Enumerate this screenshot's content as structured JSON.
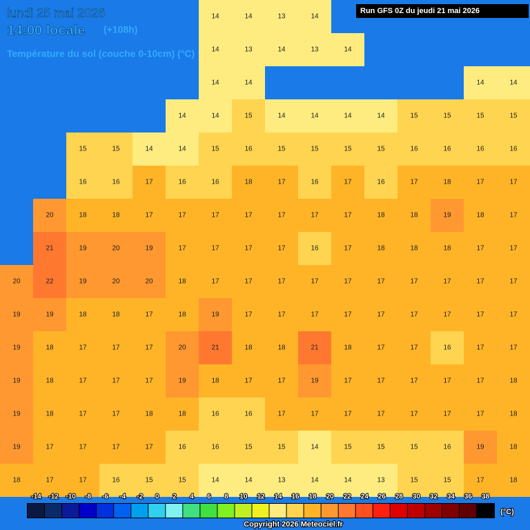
{
  "header": {
    "date": "lundi 25 mai 2026",
    "time": "14:00 locale",
    "lead": "(+108h)",
    "variable": "Température du sol (couche 0-10cm) (°C)",
    "run": "Run GFS 0Z du jeudi 21 mai 2026"
  },
  "grid": {
    "values": [
      [
        null,
        null,
        null,
        null,
        null,
        null,
        14,
        14,
        13,
        14,
        null,
        null,
        null,
        null,
        null,
        null
      ],
      [
        null,
        null,
        null,
        null,
        null,
        null,
        14,
        13,
        14,
        13,
        14,
        null,
        null,
        null,
        null,
        null
      ],
      [
        null,
        null,
        null,
        null,
        null,
        null,
        14,
        14,
        null,
        null,
        null,
        null,
        null,
        null,
        14,
        14
      ],
      [
        null,
        null,
        null,
        null,
        null,
        14,
        14,
        15,
        14,
        14,
        14,
        14,
        15,
        15,
        15,
        15
      ],
      [
        null,
        null,
        15,
        15,
        14,
        14,
        15,
        16,
        15,
        15,
        15,
        15,
        16,
        16,
        16,
        16
      ],
      [
        null,
        null,
        16,
        16,
        17,
        16,
        16,
        18,
        17,
        16,
        17,
        16,
        17,
        18,
        17,
        17
      ],
      [
        null,
        20,
        18,
        18,
        17,
        17,
        17,
        17,
        17,
        17,
        17,
        18,
        18,
        19,
        18,
        17
      ],
      [
        null,
        21,
        19,
        20,
        19,
        17,
        17,
        17,
        17,
        16,
        17,
        18,
        18,
        18,
        17,
        17
      ],
      [
        20,
        22,
        19,
        20,
        20,
        18,
        17,
        17,
        17,
        17,
        17,
        17,
        17,
        17,
        17,
        17
      ],
      [
        19,
        19,
        18,
        18,
        17,
        18,
        19,
        17,
        17,
        17,
        17,
        17,
        17,
        17,
        17,
        17
      ],
      [
        19,
        18,
        17,
        17,
        17,
        20,
        21,
        18,
        18,
        21,
        18,
        17,
        17,
        16,
        17,
        17
      ],
      [
        19,
        18,
        17,
        17,
        17,
        19,
        18,
        17,
        17,
        19,
        17,
        17,
        17,
        17,
        17,
        18
      ],
      [
        19,
        18,
        17,
        17,
        18,
        18,
        16,
        16,
        17,
        17,
        17,
        17,
        17,
        17,
        17,
        18
      ],
      [
        19,
        17,
        17,
        17,
        17,
        16,
        16,
        15,
        15,
        14,
        15,
        15,
        15,
        16,
        19,
        18
      ],
      [
        18,
        17,
        17,
        16,
        15,
        15,
        14,
        14,
        13,
        14,
        14,
        13,
        15,
        15,
        17,
        18
      ]
    ]
  },
  "colorbar": {
    "unit": "(°C)",
    "labels": [
      -14,
      -12,
      -10,
      -8,
      -6,
      -4,
      -2,
      0,
      2,
      4,
      6,
      8,
      10,
      12,
      14,
      16,
      18,
      20,
      22,
      24,
      26,
      28,
      30,
      32,
      34,
      36,
      38
    ],
    "colors": [
      "#0b1840",
      "#0a2a6a",
      "#0a1a9a",
      "#0000c8",
      "#0030e0",
      "#0060f0",
      "#00a0f0",
      "#30d0f0",
      "#80f0f0",
      "#40e080",
      "#40e040",
      "#80f020",
      "#c0f020",
      "#f0f020",
      "#ffec80",
      "#ffd450",
      "#ffb428",
      "#ff9830",
      "#ff7830",
      "#ff5020",
      "#ff2010",
      "#e00000",
      "#c00000",
      "#a00000",
      "#800000",
      "#600000",
      "#000000"
    ]
  },
  "footer": {
    "copyright": "Copyright 2026 Meteociel.fr"
  }
}
